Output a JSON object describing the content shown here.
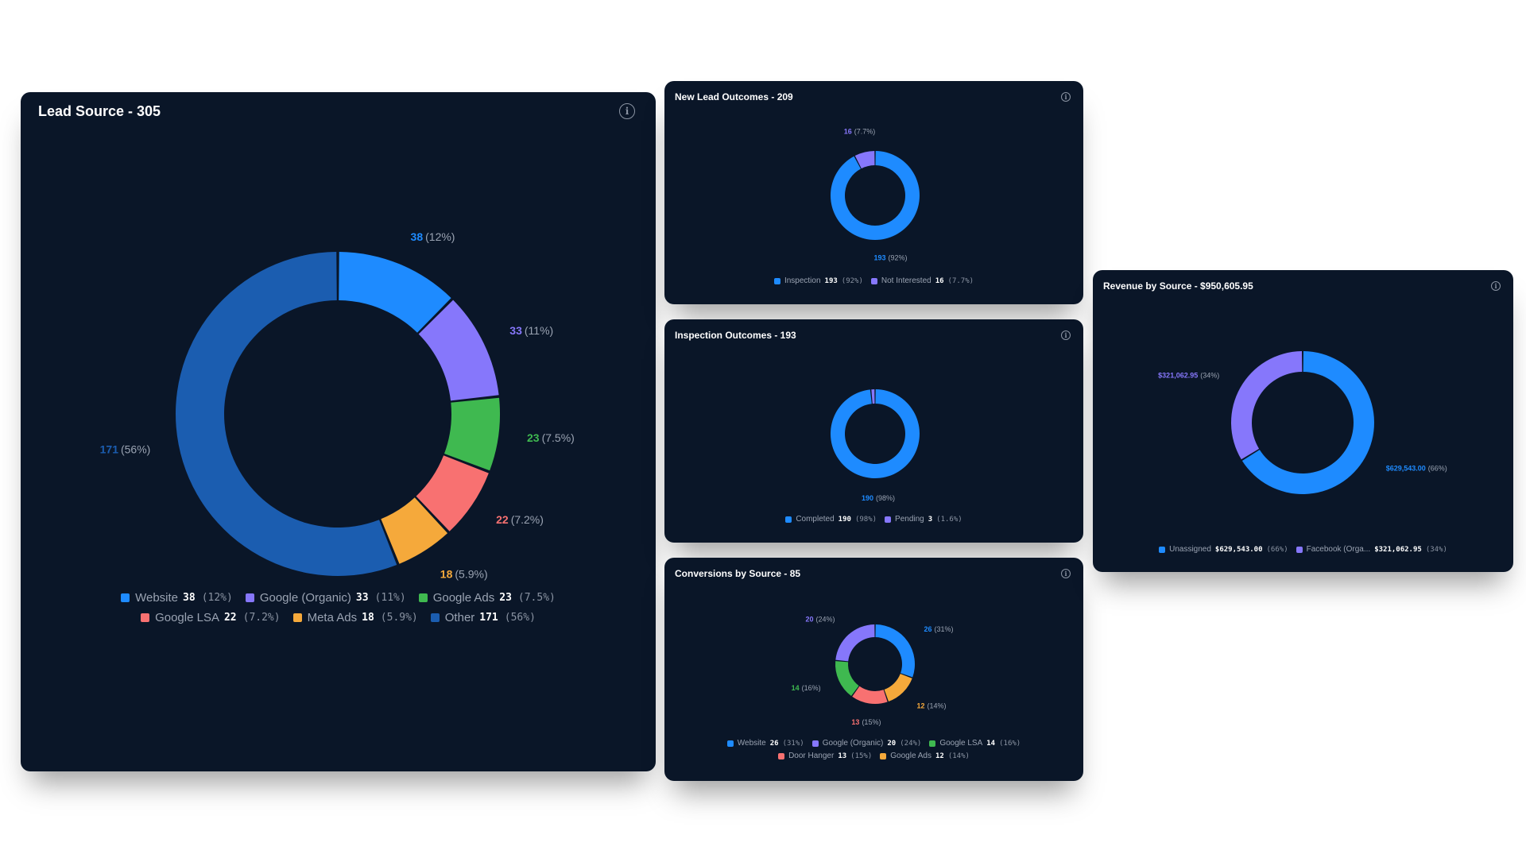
{
  "colors": {
    "card_bg": "#0a1628",
    "label_muted": "#9aa3b2"
  },
  "info_icon": "info-circle-icon",
  "info_glyph": "i",
  "cards": {
    "lead": {
      "title": "Lead Source - 305"
    },
    "outcomes": {
      "title": "New Lead Outcomes - 209"
    },
    "inspection": {
      "title": "Inspection Outcomes - 193"
    },
    "conversions": {
      "title": "Conversions by Source - 85"
    },
    "revenue": {
      "title": "Revenue by Source - $950,605.95"
    }
  },
  "chart_data": [
    {
      "id": "lead",
      "type": "pie",
      "variant": "donut",
      "title": "Lead Source - 305",
      "slices": [
        {
          "name": "Website",
          "value": 38,
          "value_label": "38",
          "pct": "12%",
          "color": "#1e8bff"
        },
        {
          "name": "Google (Organic)",
          "value": 33,
          "value_label": "33",
          "pct": "11%",
          "color": "#8677fb"
        },
        {
          "name": "Google Ads",
          "value": 23,
          "value_label": "23",
          "pct": "7.5%",
          "color": "#3fb950"
        },
        {
          "name": "Google LSA",
          "value": 22,
          "value_label": "22",
          "pct": "7.2%",
          "color": "#f87171"
        },
        {
          "name": "Meta Ads",
          "value": 18,
          "value_label": "18",
          "pct": "5.9%",
          "color": "#f5a93b"
        },
        {
          "name": "Other",
          "value": 171,
          "value_label": "171",
          "pct": "56%",
          "color": "#1b5db0"
        }
      ],
      "legend_rows": [
        3,
        3
      ]
    },
    {
      "id": "outcomes",
      "type": "pie",
      "variant": "donut",
      "title": "New Lead Outcomes - 209",
      "slices": [
        {
          "name": "Inspection",
          "value": 193,
          "value_label": "193",
          "pct": "92%",
          "color": "#1e8bff"
        },
        {
          "name": "Not Interested",
          "value": 16,
          "value_label": "16",
          "pct": "7.7%",
          "color": "#8677fb"
        }
      ],
      "legend_rows": [
        2
      ]
    },
    {
      "id": "inspection",
      "type": "pie",
      "variant": "donut",
      "title": "Inspection Outcomes - 193",
      "slices": [
        {
          "name": "Completed",
          "value": 190,
          "value_label": "190",
          "pct": "98%",
          "color": "#1e8bff"
        },
        {
          "name": "Pending",
          "value": 3,
          "value_label": "3",
          "pct": "1.6%",
          "color": "#8677fb"
        }
      ],
      "hidden_labels": [
        "Pending"
      ],
      "legend_rows": [
        2
      ]
    },
    {
      "id": "conversions",
      "type": "pie",
      "variant": "donut",
      "title": "Conversions by Source - 85",
      "slices": [
        {
          "name": "Website",
          "value": 26,
          "value_label": "26",
          "pct": "31%",
          "color": "#1e8bff"
        },
        {
          "name": "Google Ads",
          "value": 12,
          "value_label": "12",
          "pct": "14%",
          "color": "#f5a93b"
        },
        {
          "name": "Door Hanger",
          "value": 13,
          "value_label": "13",
          "pct": "15%",
          "color": "#f87171"
        },
        {
          "name": "Google LSA",
          "value": 14,
          "value_label": "14",
          "pct": "16%",
          "color": "#3fb950"
        },
        {
          "name": "Google (Organic)",
          "value": 20,
          "value_label": "20",
          "pct": "24%",
          "color": "#8677fb"
        }
      ],
      "legend_order": [
        "Website",
        "Google (Organic)",
        "Google LSA",
        "Door Hanger",
        "Google Ads"
      ],
      "legend_rows": [
        3,
        2
      ]
    },
    {
      "id": "revenue",
      "type": "pie",
      "variant": "donut",
      "title": "Revenue by Source - $950,605.95",
      "slices": [
        {
          "name": "Unassigned",
          "value": 629543.0,
          "value_label": "$629,543.00",
          "pct": "66%",
          "color": "#1e8bff"
        },
        {
          "name": "Facebook (Orga...",
          "value": 321062.95,
          "value_label": "$321,062.95",
          "pct": "34%",
          "color": "#8677fb"
        }
      ],
      "legend_rows": [
        2
      ]
    }
  ]
}
